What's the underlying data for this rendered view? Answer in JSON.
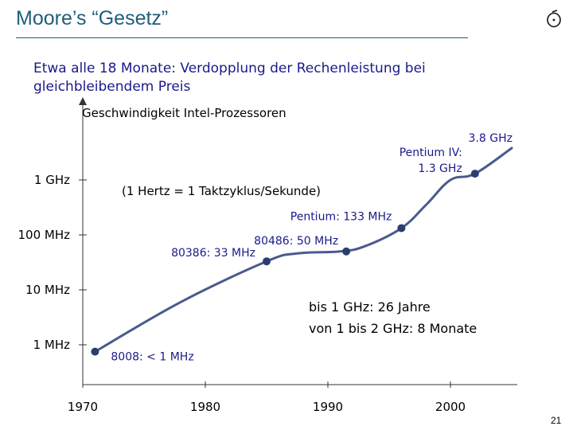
{
  "slide": {
    "title": "Moore’s “Gesetz”",
    "subtitle": "Etwa alle 18 Monate: Verdopplung der Rechenleistung bei gleichbleibendem Preis",
    "page_number": "21"
  },
  "colors": {
    "curve": "#4a5a8c",
    "marker": "#2a3e6e",
    "title": "#1f5f7a",
    "subtitle": "#1a1a8a"
  },
  "chart_data": {
    "type": "line",
    "title": "Geschwindigkeit Intel-Prozessoren",
    "yscale": "log",
    "xlim": [
      1970,
      2005
    ],
    "x_ticks": [
      1970,
      1980,
      1990,
      2000
    ],
    "x_tick_labels": [
      "1970",
      "1980",
      "1990",
      "2000"
    ],
    "y_ticks_mhz": [
      1,
      10,
      100,
      1000
    ],
    "y_tick_labels": [
      "1 MHz",
      "10 MHz",
      "100 MHz",
      "1 GHz"
    ],
    "annotation": "(1 Hertz = 1 Taktzyklus/Sekunde)",
    "series": [
      {
        "name": "Intel-Prozessoren",
        "curve": [
          {
            "x": 1971,
            "mhz": 0.75
          },
          {
            "x": 1978,
            "mhz": 6
          },
          {
            "x": 1985,
            "mhz": 33
          },
          {
            "x": 1987.5,
            "mhz": 46
          },
          {
            "x": 1991,
            "mhz": 50
          },
          {
            "x": 1993,
            "mhz": 62
          },
          {
            "x": 1996,
            "mhz": 133
          },
          {
            "x": 1998,
            "mhz": 350
          },
          {
            "x": 2000,
            "mhz": 1000
          },
          {
            "x": 2002,
            "mhz": 1300
          },
          {
            "x": 2005,
            "mhz": 3800
          }
        ],
        "points": [
          {
            "x": 1971,
            "mhz": 0.75,
            "label": "8008: < 1 MHz"
          },
          {
            "x": 1985,
            "mhz": 33,
            "label": "80386: 33 MHz"
          },
          {
            "x": 1991.5,
            "mhz": 50,
            "label": "80486: 50 MHz"
          },
          {
            "x": 1996,
            "mhz": 133,
            "label": "Pentium: 133 MHz"
          },
          {
            "x": 2002,
            "mhz": 1300,
            "label_lines": [
              "Pentium IV:",
              "1.3 GHz"
            ]
          }
        ],
        "end_label": "3.8 GHz"
      }
    ]
  },
  "note": {
    "line1": "bis 1 GHz: 26 Jahre",
    "line2": "von 1 bis 2 GHz: 8 Monate"
  }
}
